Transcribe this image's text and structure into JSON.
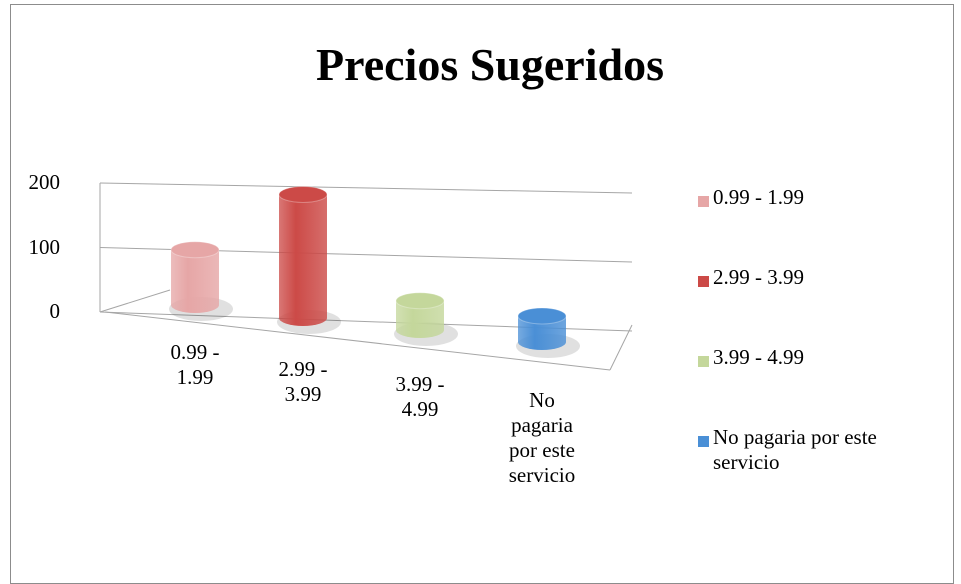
{
  "chart_data": {
    "type": "bar3d",
    "title": "Precios Sugeridos",
    "categories": [
      "0.99 - 1.99",
      "2.99 - 3.99",
      "3.99 - 4.99",
      "No pagaria por este servicio"
    ],
    "values": [
      85,
      190,
      45,
      40
    ],
    "colors": [
      "#e6a6a6",
      "#cc4a47",
      "#c4d79b",
      "#4a8fd6"
    ],
    "ylim": [
      0,
      200
    ],
    "yticks": [
      0,
      100,
      200
    ],
    "grid": true,
    "legend": "right"
  }
}
